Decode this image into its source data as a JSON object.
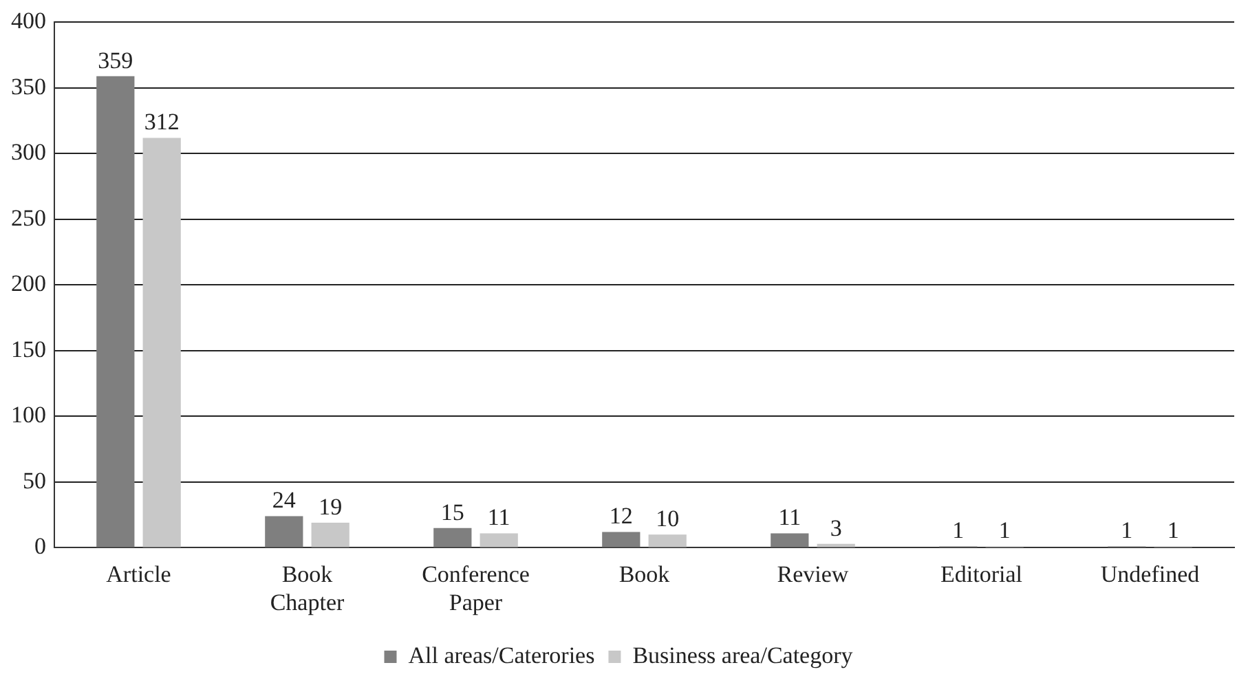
{
  "chart_data": {
    "type": "bar",
    "categories": [
      "Article",
      "Book Chapter",
      "Conference Paper",
      "Book",
      "Review",
      "Editorial",
      "Undefined"
    ],
    "series": [
      {
        "name": "All areas/Caterories",
        "color": "#7f7f7f",
        "values": [
          359,
          24,
          15,
          12,
          11,
          1,
          1
        ]
      },
      {
        "name": "Business area/Category",
        "color": "#c8c8c8",
        "values": [
          312,
          19,
          11,
          10,
          3,
          1,
          1
        ]
      }
    ],
    "ylim": [
      0,
      400
    ],
    "yticks": [
      0,
      50,
      100,
      150,
      200,
      250,
      300,
      350,
      400
    ],
    "grid": "y",
    "legend": "bottom",
    "data_labels": true
  }
}
